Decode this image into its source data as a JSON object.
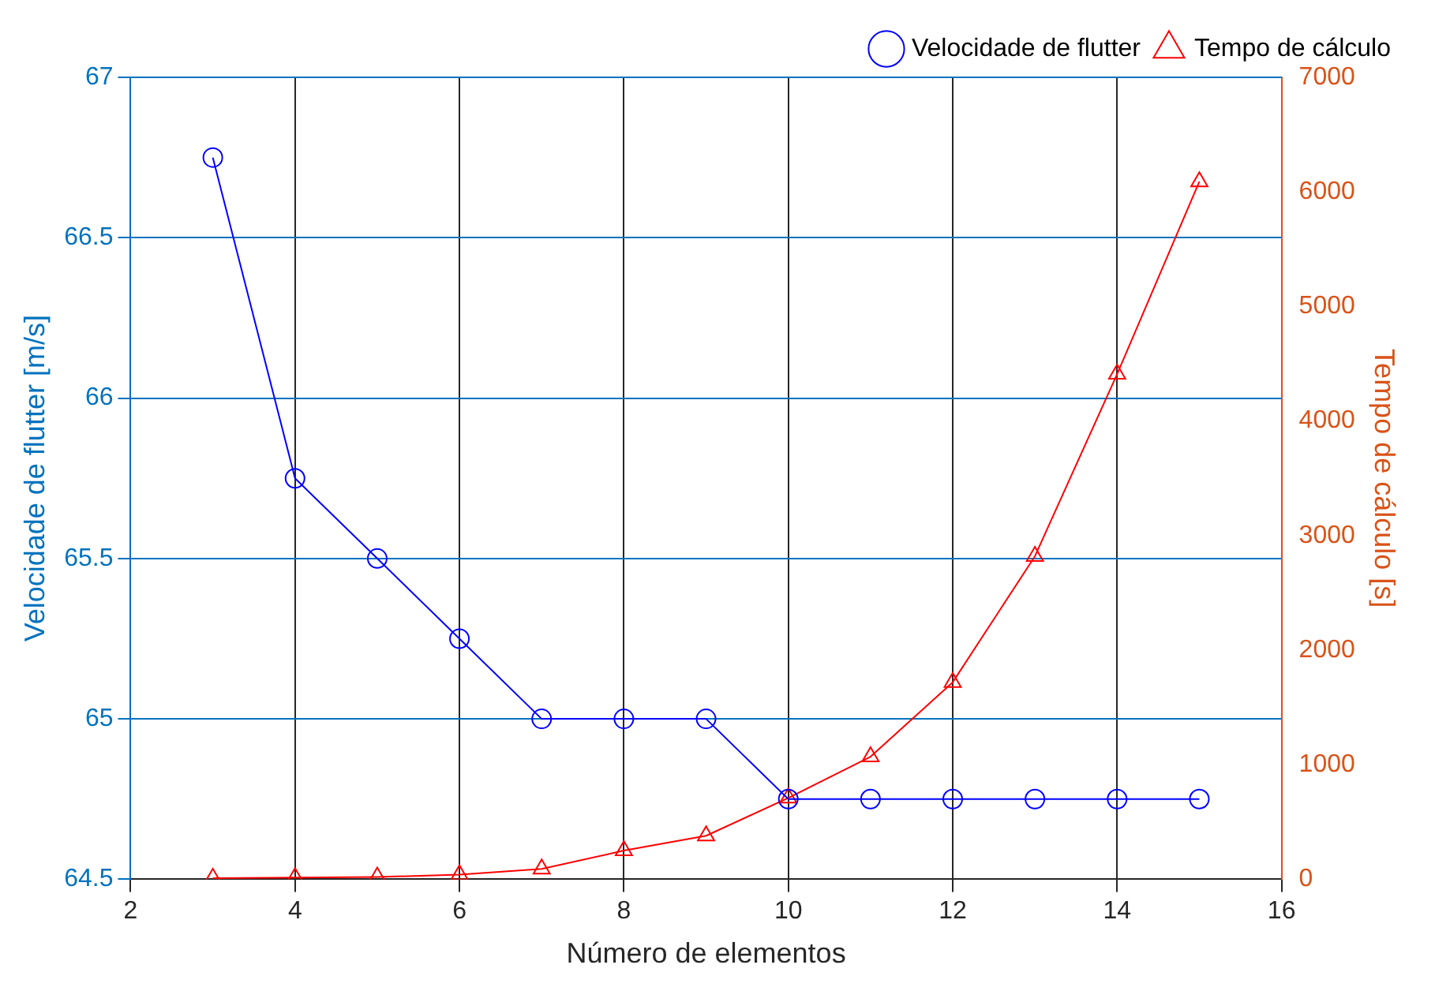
{
  "chart_data": {
    "type": "line",
    "xlabel": "Número de elementos",
    "ylabel": "Velocidade de flutter [m/s]",
    "y2label": "Tempo de cálculo [s]",
    "x": [
      3,
      4,
      5,
      6,
      7,
      8,
      9,
      10,
      11,
      12,
      13,
      14,
      15
    ],
    "series": [
      {
        "name": "Velocidade de flutter",
        "color": "#0000ff",
        "marker": "circle",
        "values": [
          66.75,
          65.75,
          65.5,
          65.25,
          65,
          65,
          65,
          64.75,
          64.75,
          64.75,
          64.75,
          64.75,
          64.75
        ]
      },
      {
        "name": "Tempo de cálculo",
        "color": "#ff0000",
        "marker": "triangle",
        "axis": "y2",
        "values": [
          10,
          15,
          20,
          40,
          90,
          250,
          380,
          710,
          1070,
          1720,
          2820,
          4410,
          6090
        ]
      }
    ],
    "xlim": [
      2,
      16
    ],
    "xticks": [
      2,
      4,
      6,
      8,
      10,
      12,
      14,
      16
    ],
    "ylim": [
      64.5,
      67
    ],
    "yticks": [
      64.5,
      65,
      65.5,
      66,
      66.5,
      67
    ],
    "y2lim": [
      0,
      7000
    ],
    "y2ticks": [
      0,
      1000,
      2000,
      3000,
      4000,
      5000,
      6000,
      7000
    ],
    "grid": true,
    "legend": "top right"
  }
}
